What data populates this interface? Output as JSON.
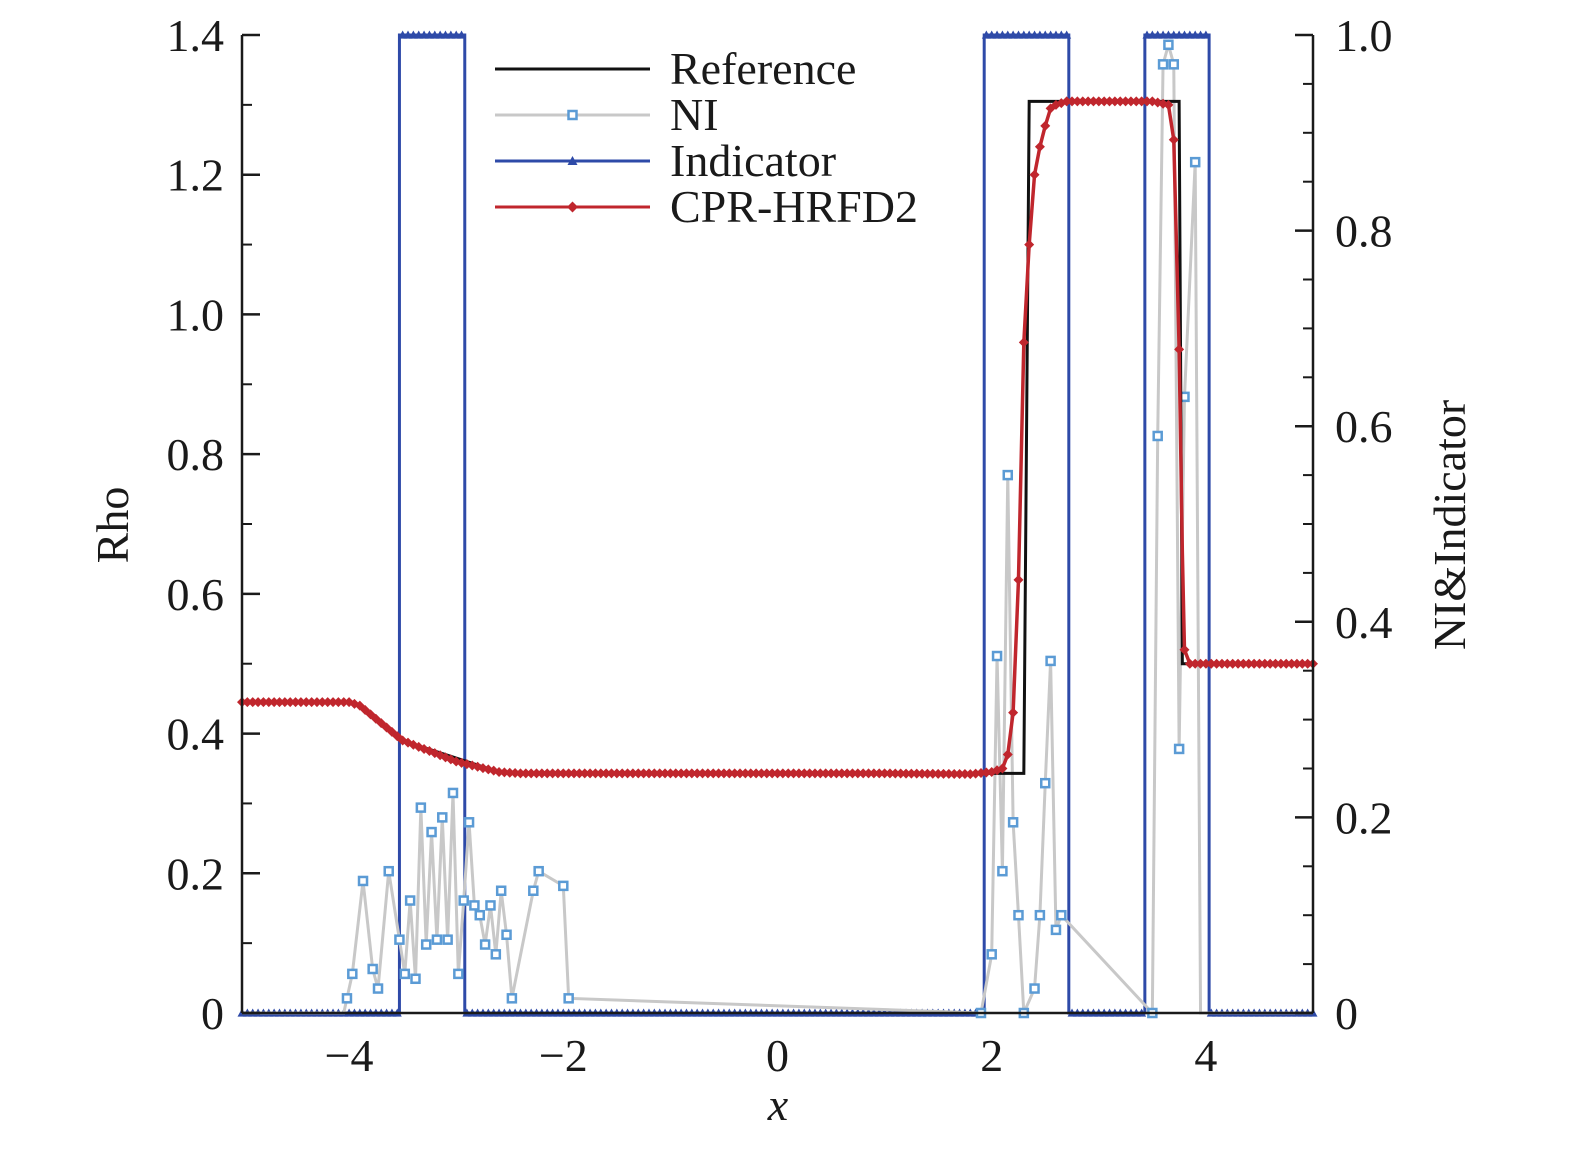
{
  "chart_data": {
    "type": "line",
    "xlabel": "x",
    "ylabel": "Rho",
    "y2label": "NI&Indicator",
    "xlim": [
      -5,
      5
    ],
    "ylim": [
      0,
      1.4
    ],
    "y2lim": [
      0,
      1.0
    ],
    "x_ticks": [
      -4,
      -2,
      0,
      2,
      4
    ],
    "x_tick_labels": [
      "−4",
      "−2",
      "0",
      "2",
      "4"
    ],
    "y_ticks": [
      0,
      0.2,
      0.4,
      0.6,
      0.8,
      1.0,
      1.2,
      1.4
    ],
    "y_tick_labels": [
      "0",
      "0.2",
      "0.4",
      "0.6",
      "0.8",
      "1.0",
      "1.2",
      "1.4"
    ],
    "y2_ticks": [
      0,
      0.2,
      0.4,
      0.6,
      0.8,
      1.0
    ],
    "y2_tick_labels": [
      "0",
      "0.2",
      "0.4",
      "0.6",
      "0.8",
      "1.0"
    ],
    "grid": false,
    "legend_position": "top-center",
    "colors": {
      "Reference": "#111111",
      "NI": "#c8c8c8",
      "NI_marker": "#5b9bd5",
      "Indicator": "#2e4aa8",
      "CPR-HRFD2": "#c0262d"
    },
    "series": [
      {
        "name": "Reference",
        "axis": "left",
        "marker": "none",
        "x": [
          -5,
          -3.95,
          -3.5,
          -3.0,
          -2.6,
          -2.4,
          -2.2,
          2.3,
          2.35,
          2.5,
          3.75,
          3.78,
          5
        ],
        "y": [
          0.445,
          0.445,
          0.39,
          0.365,
          0.345,
          0.343,
          0.343,
          0.343,
          1.305,
          1.305,
          1.305,
          0.5,
          0.5
        ]
      },
      {
        "name": "NI",
        "axis": "right",
        "marker": "square",
        "x": [
          -4.02,
          -3.97,
          -3.87,
          -3.78,
          -3.73,
          -3.63,
          -3.53,
          -3.48,
          -3.43,
          -3.38,
          -3.33,
          -3.28,
          -3.23,
          -3.18,
          -3.13,
          -3.08,
          -3.03,
          -2.98,
          -2.93,
          -2.88,
          -2.83,
          -2.78,
          -2.73,
          -2.68,
          -2.63,
          -2.58,
          -2.53,
          -2.48,
          -2.28,
          -2.23,
          -2.0,
          -1.95,
          1.9,
          2.0,
          2.05,
          2.1,
          2.15,
          2.2,
          2.25,
          2.3,
          2.4,
          2.45,
          2.5,
          2.55,
          2.6,
          2.65,
          3.5,
          3.55,
          3.6,
          3.65,
          3.7,
          3.75,
          3.8,
          3.9
        ],
        "y": [
          0.015,
          0.04,
          0.135,
          0.045,
          0.025,
          0.145,
          0.075,
          0.04,
          0.115,
          0.035,
          0.21,
          0.07,
          0.185,
          0.075,
          0.2,
          0.075,
          0.225,
          0.04,
          0.115,
          0.195,
          0.11,
          0.1,
          0.07,
          0.11,
          0.06,
          0.125,
          0.08,
          0.015,
          0.125,
          0.145,
          0.13,
          0.015,
          0.0,
          0.06,
          0.365,
          0.145,
          0.55,
          0.195,
          0.1,
          0.0,
          0.025,
          0.1,
          0.235,
          0.36,
          0.085,
          0.1,
          0.0,
          0.59,
          0.97,
          0.99,
          0.97,
          0.27,
          0.63,
          0.87
        ],
        "extra_x": [
          -4.05,
          2.35,
          3.45,
          3.95
        ],
        "extra_y": [
          0.0,
          0.0,
          0.0,
          0.0
        ]
      },
      {
        "name": "Indicator",
        "axis": "right",
        "marker": "triangle",
        "segments_on": [
          [
            -3.53,
            -2.92
          ],
          [
            1.93,
            2.72
          ],
          [
            3.43,
            4.03
          ]
        ]
      },
      {
        "name": "CPR-HRFD2",
        "axis": "left",
        "marker": "diamond",
        "x": [
          -5,
          -4.0,
          -3.9,
          -3.5,
          -3.0,
          -2.6,
          -2.4,
          -2.2,
          -1.5,
          0,
          1.0,
          1.8,
          2.0,
          2.1,
          2.15,
          2.2,
          2.25,
          2.3,
          2.35,
          2.4,
          2.45,
          2.5,
          2.55,
          2.6,
          2.7,
          2.8,
          3.0,
          3.5,
          3.65,
          3.7,
          3.75,
          3.78,
          3.8,
          3.85,
          4.0,
          5
        ],
        "y": [
          0.445,
          0.445,
          0.44,
          0.39,
          0.36,
          0.345,
          0.343,
          0.343,
          0.343,
          0.343,
          0.343,
          0.342,
          0.345,
          0.35,
          0.37,
          0.43,
          0.62,
          0.96,
          1.1,
          1.2,
          1.24,
          1.27,
          1.295,
          1.3,
          1.305,
          1.305,
          1.305,
          1.305,
          1.3,
          1.25,
          0.95,
          0.66,
          0.52,
          0.5,
          0.5,
          0.5
        ]
      }
    ]
  }
}
